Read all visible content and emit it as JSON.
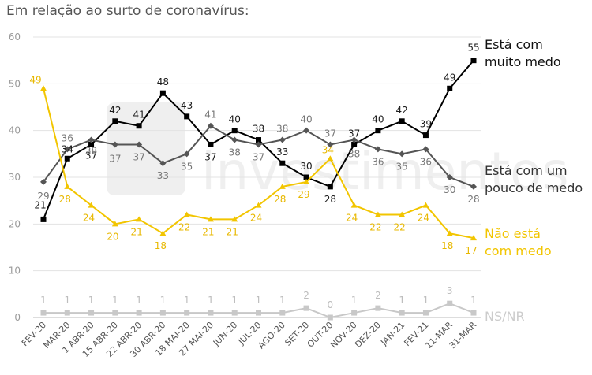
{
  "chart_data": {
    "type": "line",
    "title": "Em relação ao surto de coronavírus:",
    "ylim": [
      0,
      60
    ],
    "yticks": [
      "0",
      "10",
      "20",
      "30",
      "40",
      "50",
      "60"
    ],
    "grid": true,
    "categories": [
      "FEV-20",
      "MAR-20",
      "1 ABR-20",
      "15 ABR-20",
      "22 ABR-20",
      "30 ABR-20",
      "18 MAI-20",
      "27 MAI-20",
      "JUN-20",
      "JUL-20",
      "AGO-20",
      "SET-20",
      "OUT-20",
      "NOV-20",
      "DEZ-20",
      "JAN-21",
      "FEV-21",
      "11-MAR",
      "31-MAR"
    ],
    "series": [
      {
        "name_lines": [
          "Está com",
          "muito medo"
        ],
        "color": "#000000",
        "marker": "square",
        "values": [
          21,
          34,
          37,
          42,
          41,
          48,
          43,
          37,
          40,
          38,
          33,
          30,
          28,
          37,
          40,
          42,
          39,
          49,
          55
        ],
        "labels": [
          "21",
          "34",
          "37",
          "42",
          "41",
          "48",
          "43",
          "37",
          "40",
          "38",
          "33",
          "30",
          "28",
          "37",
          "40",
          "42",
          "39",
          "49",
          "55"
        ]
      },
      {
        "name_lines": [
          "Está com um",
          "pouco de medo"
        ],
        "color": "#555555",
        "marker": "diamond",
        "values": [
          29,
          36,
          38,
          37,
          37,
          33,
          35,
          41,
          38,
          37,
          38,
          40,
          37,
          38,
          36,
          35,
          36,
          30,
          28
        ],
        "labels": [
          "29",
          "36",
          "38",
          "37",
          "37",
          "33",
          "35",
          "41",
          "38",
          "37",
          "38",
          "40",
          "37",
          "38",
          "36",
          "35",
          "36",
          "30",
          "28"
        ]
      },
      {
        "name_lines": [
          "Não está",
          "com medo"
        ],
        "color": "#f2c500",
        "marker": "triangle",
        "values": [
          49,
          28,
          24,
          20,
          21,
          18,
          22,
          21,
          21,
          24,
          28,
          29,
          34,
          24,
          22,
          22,
          24,
          18,
          17
        ],
        "labels": [
          "49",
          "28",
          "24",
          "20",
          "21",
          "18",
          "22",
          "21",
          "21",
          "24",
          "28",
          "29",
          "34",
          "24",
          "22",
          "22",
          "24",
          "18",
          "17"
        ]
      },
      {
        "name_lines": [
          "NS/NR"
        ],
        "color": "#c8c8c8",
        "marker": "square",
        "values": [
          1,
          1,
          1,
          1,
          1,
          1,
          1,
          1,
          1,
          1,
          1,
          2,
          0,
          1,
          2,
          1,
          1,
          3,
          1
        ],
        "labels": [
          "1",
          "1",
          "1",
          "1",
          "1",
          "1",
          "1",
          "1",
          "1",
          "1",
          "1",
          "2",
          "0",
          "1",
          "2",
          "1",
          "1",
          "3",
          "1"
        ]
      }
    ]
  }
}
